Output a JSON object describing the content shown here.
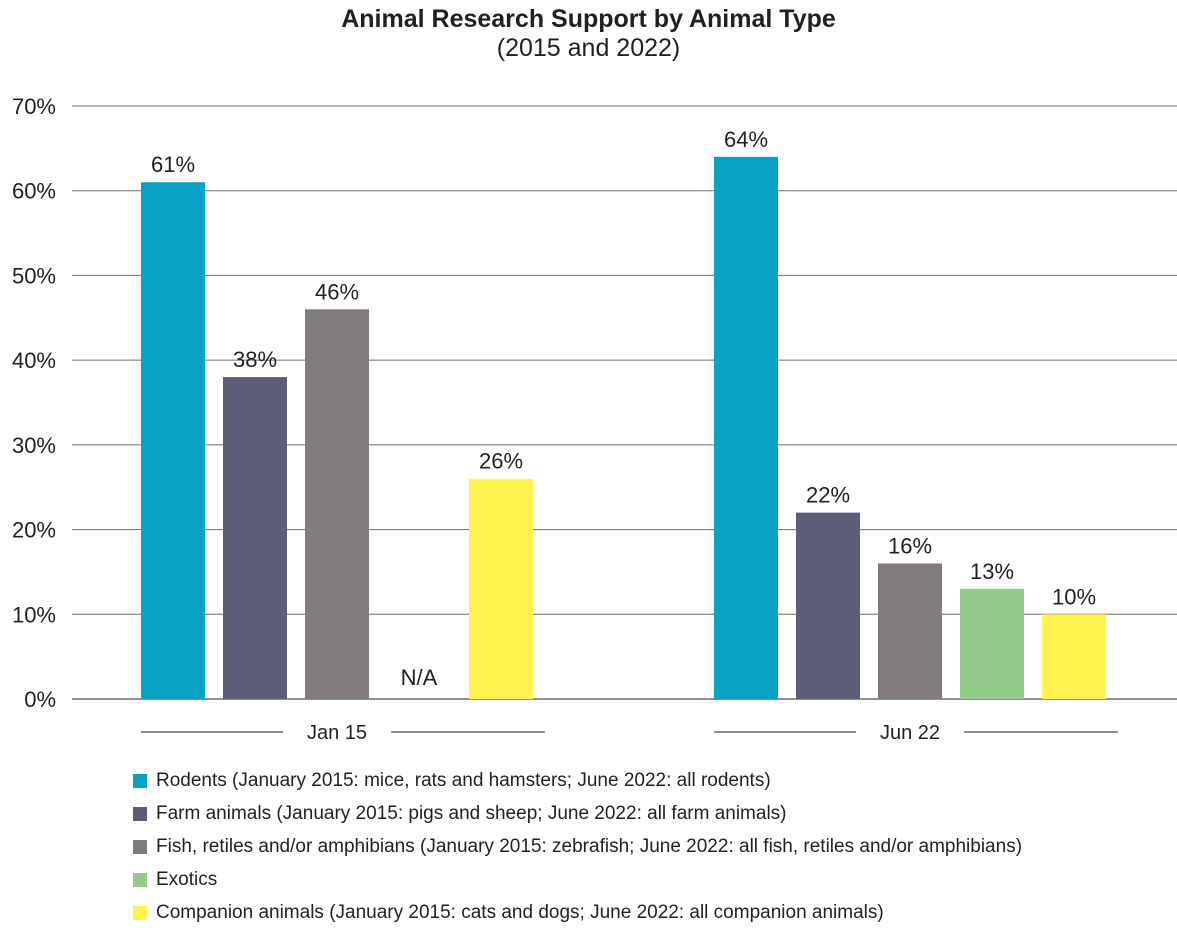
{
  "chart_data": {
    "type": "bar",
    "title": "Animal Research Support by Animal Type",
    "subtitle": "(2015 and 2022)",
    "categories": [
      "Jan 15",
      "Jun 22"
    ],
    "ylim": [
      0,
      70
    ],
    "yticks": [
      0,
      10,
      20,
      30,
      40,
      50,
      60,
      70
    ],
    "ytick_labels": [
      "0%",
      "10%",
      "20%",
      "30%",
      "40%",
      "50%",
      "60%",
      "70%"
    ],
    "grid": true,
    "legend_position": "bottom",
    "na_label": "N/A",
    "series": [
      {
        "name": "Rodents (January 2015: mice, rats and hamsters; June 2022: all rodents)",
        "color": "#06a3c4",
        "values": [
          61,
          64
        ],
        "labels": [
          "61%",
          "64%"
        ]
      },
      {
        "name": "Farm animals (January 2015: pigs and sheep; June 2022: all farm animals)",
        "color": "#5c5e78",
        "values": [
          38,
          22
        ],
        "labels": [
          "38%",
          "22%"
        ]
      },
      {
        "name": "Fish, retiles and/or amphibians (January 2015: zebrafish; June 2022: all fish, retiles and/or amphibians)",
        "color": "#807b7c",
        "values": [
          46,
          16
        ],
        "labels": [
          "46%",
          "16%"
        ]
      },
      {
        "name": "Exotics",
        "color": "#93c98a",
        "values": [
          null,
          13
        ],
        "labels": [
          "N/A",
          "13%"
        ]
      },
      {
        "name": "Companion animals (January 2015: cats and dogs; June 2022: all companion animals)",
        "color": "#fef24f",
        "values": [
          26,
          10
        ],
        "labels": [
          "26%",
          "10%"
        ]
      }
    ]
  }
}
